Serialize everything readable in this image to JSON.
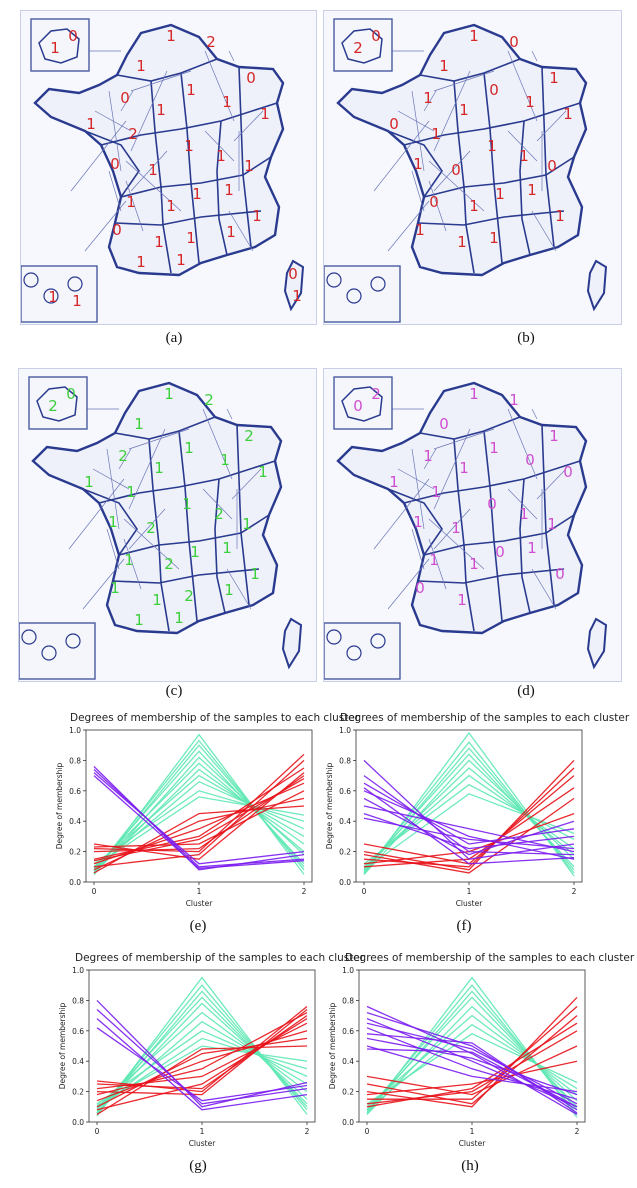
{
  "figure": {
    "captions": [
      "(a)",
      "(b)",
      "(c)",
      "(d)",
      "(e)",
      "(f)",
      "(g)",
      "(h)"
    ]
  },
  "maps": [
    {
      "id": "a",
      "digit_color": "#d62728",
      "visible_digits": [
        "0",
        "1",
        "1",
        "2",
        "1",
        "0",
        "1",
        "1",
        "0",
        "1",
        "1",
        "1",
        "2",
        "1",
        "1",
        "1",
        "0",
        "1",
        "1",
        "1",
        "1",
        "1",
        "1",
        "0",
        "1",
        "1",
        "1",
        "1",
        "1",
        "0",
        "1",
        "1",
        "1"
      ]
    },
    {
      "id": "b",
      "digit_color": "#d62728",
      "visible_digits": [
        "0",
        "2",
        "1",
        "0",
        "1",
        "1",
        "1",
        "0",
        "1",
        "1",
        "1",
        "0",
        "1",
        "1",
        "1",
        "0",
        "1",
        "0",
        "1",
        "1",
        "1",
        "0",
        "1",
        "1",
        "1",
        "1"
      ]
    },
    {
      "id": "c",
      "digit_color": "#3ccf3c",
      "visible_digits": [
        "0",
        "2",
        "1",
        "2",
        "1",
        "2",
        "1",
        "1",
        "2",
        "1",
        "1",
        "1",
        "1",
        "1",
        "2",
        "1",
        "1",
        "2",
        "1",
        "1",
        "1",
        "1",
        "2",
        "1",
        "1",
        "2",
        "1",
        "1",
        "1"
      ]
    },
    {
      "id": "d",
      "digit_color": "#d04fd0",
      "visible_digits": [
        "2",
        "0",
        "1",
        "1",
        "0",
        "1",
        "0",
        "1",
        "1",
        "1",
        "0",
        "1",
        "1",
        "0",
        "1",
        "1",
        "1",
        "1",
        "0",
        "1",
        "0",
        "1",
        "1",
        "0",
        "1"
      ]
    }
  ],
  "colors": {
    "map_border": "#2a3a8f",
    "cluster_0": "#7a1cf0",
    "cluster_1": "#5ee8b4",
    "cluster_2": "#e8121a"
  },
  "chart_data": [
    {
      "panel": "e",
      "type": "line",
      "title": "Degrees of membership of the samples to each cluster",
      "xlabel": "Cluster",
      "ylabel": "Degree of membership",
      "categories": [
        "0",
        "1",
        "2"
      ],
      "ylim": [
        0,
        1.0
      ],
      "yticks": [
        "0.0",
        "0.2",
        "0.4",
        "0.6",
        "0.8",
        "1.0"
      ],
      "series_groups": [
        {
          "name": "",
          "color": "#5ee8b4",
          "lines": [
            [
              0.05,
              0.97,
              0.05
            ],
            [
              0.07,
              0.93,
              0.08
            ],
            [
              0.06,
              0.9,
              0.1
            ],
            [
              0.08,
              0.86,
              0.12
            ],
            [
              0.05,
              0.82,
              0.18
            ],
            [
              0.09,
              0.78,
              0.2
            ],
            [
              0.06,
              0.74,
              0.25
            ],
            [
              0.1,
              0.7,
              0.3
            ],
            [
              0.08,
              0.66,
              0.35
            ],
            [
              0.12,
              0.6,
              0.4
            ],
            [
              0.1,
              0.56,
              0.44
            ]
          ]
        },
        {
          "name": "",
          "color": "#e8121a",
          "lines": [
            [
              0.23,
              0.25,
              0.6
            ],
            [
              0.22,
              0.2,
              0.84
            ],
            [
              0.2,
              0.22,
              0.7
            ],
            [
              0.15,
              0.3,
              0.75
            ],
            [
              0.12,
              0.35,
              0.65
            ],
            [
              0.1,
              0.18,
              0.8
            ],
            [
              0.08,
              0.4,
              0.55
            ],
            [
              0.25,
              0.15,
              0.72
            ],
            [
              0.14,
              0.28,
              0.68
            ],
            [
              0.06,
              0.45,
              0.5
            ]
          ]
        },
        {
          "name": "",
          "color": "#7a1cf0",
          "lines": [
            [
              0.76,
              0.08,
              0.18
            ],
            [
              0.74,
              0.1,
              0.15
            ],
            [
              0.72,
              0.12,
              0.2
            ],
            [
              0.7,
              0.09,
              0.14
            ]
          ]
        }
      ]
    },
    {
      "panel": "f",
      "type": "line",
      "title": "Degrees of membership of the samples to each cluster",
      "xlabel": "Cluster",
      "ylabel": "Degree of membership",
      "categories": [
        "0",
        "1",
        "2"
      ],
      "ylim": [
        0,
        1.0
      ],
      "yticks": [
        "0.0",
        "0.2",
        "0.4",
        "0.6",
        "0.8",
        "1.0"
      ],
      "series_groups": [
        {
          "name": "",
          "color": "#5ee8b4",
          "lines": [
            [
              0.05,
              0.98,
              0.04
            ],
            [
              0.07,
              0.92,
              0.06
            ],
            [
              0.06,
              0.88,
              0.08
            ],
            [
              0.08,
              0.84,
              0.1
            ],
            [
              0.05,
              0.8,
              0.15
            ],
            [
              0.09,
              0.75,
              0.18
            ],
            [
              0.1,
              0.7,
              0.22
            ],
            [
              0.12,
              0.64,
              0.28
            ],
            [
              0.08,
              0.58,
              0.32
            ]
          ]
        },
        {
          "name": "",
          "color": "#e8121a",
          "lines": [
            [
              0.2,
              0.08,
              0.8
            ],
            [
              0.15,
              0.1,
              0.75
            ],
            [
              0.25,
              0.12,
              0.7
            ],
            [
              0.1,
              0.15,
              0.62
            ],
            [
              0.18,
              0.06,
              0.55
            ],
            [
              0.12,
              0.2,
              0.45
            ]
          ]
        },
        {
          "name": "",
          "color": "#7a1cf0",
          "lines": [
            [
              0.8,
              0.15,
              0.25
            ],
            [
              0.7,
              0.2,
              0.18
            ],
            [
              0.65,
              0.25,
              0.35
            ],
            [
              0.6,
              0.3,
              0.15
            ],
            [
              0.55,
              0.18,
              0.4
            ],
            [
              0.5,
              0.35,
              0.2
            ],
            [
              0.45,
              0.22,
              0.3
            ],
            [
              0.42,
              0.28,
              0.22
            ],
            [
              0.62,
              0.12,
              0.16
            ]
          ]
        }
      ]
    },
    {
      "panel": "g",
      "type": "line",
      "title": "Degrees of membership of the samples to each cluster",
      "xlabel": "Cluster",
      "ylabel": "Degree of membership",
      "categories": [
        "0",
        "1",
        "2"
      ],
      "ylim": [
        0,
        1.0
      ],
      "yticks": [
        "0.0",
        "0.2",
        "0.4",
        "0.6",
        "0.8",
        "1.0"
      ],
      "series_groups": [
        {
          "name": "",
          "color": "#5ee8b4",
          "lines": [
            [
              0.04,
              0.95,
              0.05
            ],
            [
              0.06,
              0.9,
              0.08
            ],
            [
              0.05,
              0.86,
              0.1
            ],
            [
              0.08,
              0.82,
              0.12
            ],
            [
              0.06,
              0.78,
              0.15
            ],
            [
              0.1,
              0.72,
              0.2
            ],
            [
              0.07,
              0.66,
              0.25
            ],
            [
              0.12,
              0.6,
              0.3
            ],
            [
              0.09,
              0.55,
              0.35
            ],
            [
              0.11,
              0.5,
              0.4
            ]
          ]
        },
        {
          "name": "",
          "color": "#e8121a",
          "lines": [
            [
              0.27,
              0.2,
              0.76
            ],
            [
              0.25,
              0.22,
              0.7
            ],
            [
              0.22,
              0.3,
              0.65
            ],
            [
              0.18,
              0.35,
              0.72
            ],
            [
              0.14,
              0.4,
              0.6
            ],
            [
              0.1,
              0.45,
              0.55
            ],
            [
              0.08,
              0.25,
              0.68
            ],
            [
              0.05,
              0.48,
              0.5
            ],
            [
              0.2,
              0.18,
              0.74
            ]
          ]
        },
        {
          "name": "",
          "color": "#7a1cf0",
          "lines": [
            [
              0.8,
              0.1,
              0.26
            ],
            [
              0.74,
              0.12,
              0.22
            ],
            [
              0.68,
              0.08,
              0.18
            ],
            [
              0.62,
              0.14,
              0.24
            ]
          ]
        }
      ]
    },
    {
      "panel": "h",
      "type": "line",
      "title": "Degrees of membership of the samples to each cluster",
      "xlabel": "Cluster",
      "ylabel": "Degree of membership",
      "categories": [
        "0",
        "1",
        "2"
      ],
      "ylim": [
        0,
        1.0
      ],
      "yticks": [
        "0.0",
        "0.2",
        "0.4",
        "0.6",
        "0.8",
        "1.0"
      ],
      "series_groups": [
        {
          "name": "",
          "color": "#5ee8b4",
          "lines": [
            [
              0.05,
              0.95,
              0.03
            ],
            [
              0.07,
              0.9,
              0.05
            ],
            [
              0.06,
              0.86,
              0.08
            ],
            [
              0.08,
              0.82,
              0.1
            ],
            [
              0.05,
              0.76,
              0.14
            ],
            [
              0.1,
              0.7,
              0.18
            ],
            [
              0.08,
              0.64,
              0.22
            ],
            [
              0.12,
              0.58,
              0.26
            ]
          ]
        },
        {
          "name": "",
          "color": "#e8121a",
          "lines": [
            [
              0.2,
              0.1,
              0.82
            ],
            [
              0.15,
              0.15,
              0.76
            ],
            [
              0.25,
              0.12,
              0.7
            ],
            [
              0.12,
              0.2,
              0.6
            ],
            [
              0.3,
              0.18,
              0.5
            ],
            [
              0.18,
              0.25,
              0.4
            ],
            [
              0.1,
              0.22,
              0.65
            ]
          ]
        },
        {
          "name": "",
          "color": "#7a1cf0",
          "lines": [
            [
              0.76,
              0.45,
              0.05
            ],
            [
              0.72,
              0.5,
              0.08
            ],
            [
              0.68,
              0.4,
              0.1
            ],
            [
              0.65,
              0.48,
              0.12
            ],
            [
              0.62,
              0.35,
              0.15
            ],
            [
              0.58,
              0.52,
              0.06
            ],
            [
              0.55,
              0.42,
              0.18
            ],
            [
              0.5,
              0.3,
              0.2
            ],
            [
              0.48,
              0.46,
              0.1
            ]
          ]
        }
      ]
    }
  ]
}
